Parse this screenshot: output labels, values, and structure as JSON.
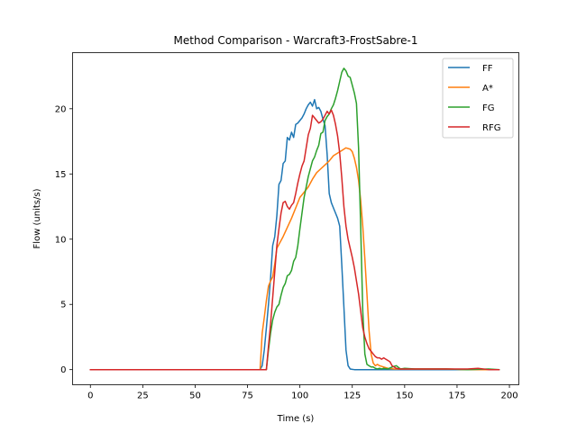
{
  "chart_data": {
    "type": "line",
    "title": "Method Comparison - Warcraft3-FrostSabre-1",
    "xlabel": "Time (s)",
    "ylabel": "Flow (units/s)",
    "xlim": [
      -8.5,
      204.5
    ],
    "ylim": [
      -1.16,
      24.3
    ],
    "xticks": [
      0,
      25,
      50,
      75,
      100,
      125,
      150,
      175,
      200
    ],
    "yticks": [
      0,
      5,
      10,
      15,
      20
    ],
    "grid": false,
    "legend_position": "top-right",
    "series": [
      {
        "name": "FF",
        "color": "#1f77b4",
        "x": [
          0,
          80,
          81,
          82,
          83,
          84,
          85,
          86,
          87,
          88,
          89,
          90,
          91,
          92,
          93,
          94,
          95,
          96,
          97,
          98,
          99,
          100,
          101,
          102,
          103,
          104,
          105,
          106,
          107,
          108,
          109,
          110,
          111,
          112,
          113,
          114,
          115,
          116,
          117,
          118,
          119,
          120,
          121,
          122,
          123,
          124,
          125,
          126,
          127,
          128,
          129,
          130,
          140,
          150,
          160,
          170,
          180,
          190,
          195
        ],
        "y": [
          0,
          0,
          0,
          0.3,
          1.5,
          3.2,
          5.0,
          7.0,
          9.5,
          10.2,
          11.8,
          14.2,
          14.5,
          15.8,
          16.0,
          17.8,
          17.6,
          18.2,
          17.8,
          18.8,
          18.9,
          19.1,
          19.3,
          19.6,
          20.0,
          20.3,
          20.5,
          20.2,
          20.7,
          20.0,
          20.1,
          19.8,
          19.2,
          18.7,
          16.5,
          13.5,
          12.8,
          12.4,
          12.0,
          11.6,
          11.0,
          8.0,
          4.8,
          1.5,
          0.3,
          0.05,
          0.02,
          0,
          0,
          0,
          0,
          0,
          0,
          0,
          0,
          0,
          0,
          0,
          0
        ]
      },
      {
        "name": "A*",
        "color": "#ff7f0e",
        "x": [
          0,
          81,
          82,
          83,
          84,
          85,
          86,
          87,
          88,
          89,
          90,
          92,
          94,
          96,
          98,
          100,
          102,
          104,
          106,
          108,
          110,
          112,
          114,
          116,
          118,
          120,
          122,
          124,
          125,
          126,
          127,
          128,
          129,
          130,
          131,
          132,
          133,
          134,
          135,
          136,
          137,
          138,
          140,
          142,
          145,
          150,
          160,
          170,
          180,
          190,
          195
        ],
        "y": [
          0,
          0,
          2.8,
          4.0,
          5.3,
          6.4,
          6.8,
          7.1,
          8.1,
          9.3,
          9.6,
          10.2,
          10.9,
          11.6,
          12.4,
          13.2,
          13.6,
          14.0,
          14.6,
          15.1,
          15.4,
          15.7,
          16.0,
          16.4,
          16.6,
          16.8,
          17.0,
          16.9,
          16.7,
          16.2,
          15.5,
          14.5,
          13.0,
          11.0,
          8.5,
          5.8,
          3.0,
          1.2,
          0.5,
          0.3,
          0.4,
          0.3,
          0.2,
          0.1,
          0.05,
          0.05,
          0.05,
          0.05,
          0,
          0,
          0
        ]
      },
      {
        "name": "FG",
        "color": "#2ca02c",
        "x": [
          0,
          84,
          85,
          86,
          87,
          88,
          89,
          90,
          91,
          92,
          93,
          94,
          95,
          96,
          97,
          98,
          99,
          100,
          101,
          102,
          103,
          104,
          105,
          106,
          107,
          108,
          109,
          110,
          111,
          112,
          113,
          114,
          115,
          116,
          117,
          118,
          119,
          120,
          121,
          122,
          123,
          124,
          125,
          126,
          127,
          128,
          129,
          130,
          131,
          132,
          133,
          134,
          135,
          136,
          137,
          138,
          139,
          140,
          142,
          144,
          146,
          148,
          150,
          155,
          160,
          170,
          180,
          190,
          195
        ],
        "y": [
          0,
          0,
          1.5,
          2.8,
          3.8,
          4.4,
          4.8,
          5.0,
          5.7,
          6.3,
          6.6,
          7.2,
          7.3,
          7.6,
          8.3,
          8.6,
          9.5,
          10.8,
          12.0,
          13.2,
          14.0,
          14.8,
          15.4,
          16.0,
          16.3,
          16.8,
          17.2,
          18.1,
          18.2,
          19.1,
          19.4,
          19.6,
          20.0,
          20.3,
          20.8,
          21.4,
          22.1,
          22.8,
          23.1,
          22.9,
          22.5,
          22.4,
          21.8,
          21.2,
          20.4,
          17.0,
          11.0,
          4.5,
          1.2,
          0.4,
          0.3,
          0.2,
          0.2,
          0.1,
          0.05,
          0.1,
          0.05,
          0.1,
          0.05,
          0.2,
          0.3,
          0.05,
          0.1,
          0.05,
          0.05,
          0.05,
          0,
          0.05,
          0
        ]
      },
      {
        "name": "RFG",
        "color": "#d62728",
        "x": [
          0,
          84,
          85,
          86,
          87,
          88,
          89,
          90,
          91,
          92,
          93,
          94,
          95,
          96,
          97,
          98,
          99,
          100,
          101,
          102,
          103,
          104,
          105,
          106,
          107,
          108,
          109,
          110,
          111,
          112,
          113,
          114,
          115,
          116,
          117,
          118,
          119,
          120,
          121,
          122,
          123,
          124,
          125,
          126,
          127,
          128,
          129,
          130,
          131,
          132,
          133,
          134,
          135,
          136,
          137,
          138,
          139,
          140,
          141,
          142,
          143,
          144,
          146,
          148,
          150,
          155,
          160,
          170,
          180,
          185,
          190,
          195
        ],
        "y": [
          0,
          0,
          1.8,
          3.5,
          5.5,
          7.5,
          9.5,
          10.8,
          12.0,
          12.8,
          12.9,
          12.5,
          12.3,
          12.6,
          12.8,
          13.5,
          14.3,
          15.0,
          15.6,
          16.0,
          17.0,
          18.0,
          18.5,
          19.5,
          19.3,
          19.1,
          18.9,
          19.0,
          19.2,
          19.5,
          19.8,
          19.6,
          19.9,
          19.5,
          18.8,
          17.9,
          16.6,
          14.7,
          12.5,
          11.0,
          10.0,
          9.3,
          8.6,
          7.8,
          6.8,
          5.8,
          4.5,
          3.2,
          2.5,
          2.0,
          1.6,
          1.4,
          1.2,
          1.0,
          0.9,
          0.9,
          0.8,
          0.9,
          0.8,
          0.7,
          0.6,
          0.3,
          0.1,
          0.05,
          0.05,
          0.05,
          0.05,
          0.05,
          0.05,
          0.1,
          0,
          0
        ]
      }
    ]
  }
}
